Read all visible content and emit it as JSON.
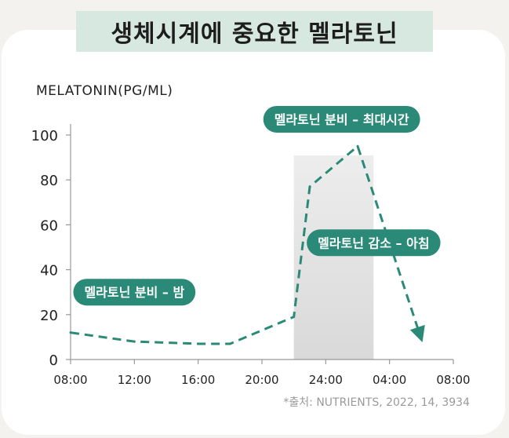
{
  "header": {
    "title": "생체시계에 중요한 멜라토닌"
  },
  "footer": {
    "source": "*출처: NUTRIENTS, 2022, 14, 3934"
  },
  "colors": {
    "accent": "#2b8a77",
    "shade": "#e4e4e4",
    "axis": "#999999"
  },
  "chart_data": {
    "type": "line",
    "title": "생체시계에 중요한 멜라토닌",
    "ylabel": "MELATONIN(PG/ML)",
    "xlabel": "",
    "x_ticks": [
      "08:00",
      "12:00",
      "16:00",
      "20:00",
      "24:00",
      "04:00",
      "08:00"
    ],
    "y_ticks": [
      0,
      20,
      40,
      60,
      80,
      100
    ],
    "ylim": [
      0,
      100
    ],
    "xlim_hours": [
      0,
      24
    ],
    "line_style": "dashed",
    "shaded_region_hours": [
      14,
      19
    ],
    "series": [
      {
        "x_hours": [
          0,
          4,
          8,
          10,
          14,
          15,
          18,
          22
        ],
        "values": [
          12,
          8,
          7,
          7,
          19,
          77,
          95,
          9
        ]
      }
    ],
    "annotations": [
      {
        "text": "멜라토닌 분비 – 밤",
        "at_hours": 4,
        "at_value": 30
      },
      {
        "text": "멜라토닌 분비 – 최대시간",
        "at_hours": 17,
        "at_value": 107
      },
      {
        "text": "멜라토닌 감소 – 아침",
        "at_hours": 19,
        "at_value": 52
      }
    ]
  }
}
